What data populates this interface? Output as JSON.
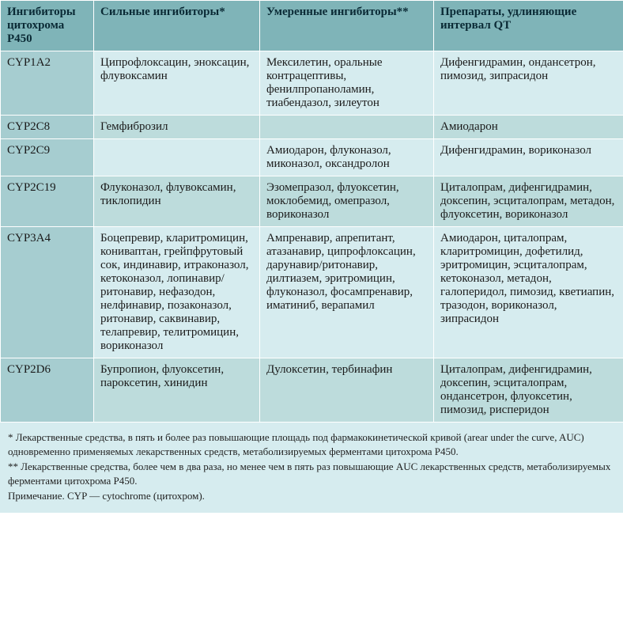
{
  "table": {
    "header_bg": "#7fb4b8",
    "header_text_color": "#0a2a35",
    "header_fontsize": 15,
    "body_fontsize": 15,
    "row_color_a": "#d6ecef",
    "row_color_b": "#bddcdc",
    "col0_bg": "#a6cdd0",
    "border_color": "#ffffff",
    "columns": [
      "Ингибиторы цитохрома Р450",
      "Сильные ингибиторы*",
      "Умеренные ингибиторы**",
      "Препараты, удлиняющие интервал QT"
    ],
    "rows": [
      {
        "cyp": "CYP1A2",
        "strong": "Ципрофлоксацин, эноксацин, флувоксамин",
        "moderate": "Мексилетин, оральные контрацептивы, фенилпропаноламин, тиабендазол, зилеутон",
        "qt": "Дифенгидрамин, ондансетрон, пимозид, зипрасидон"
      },
      {
        "cyp": "CYP2C8",
        "strong": "Гемфиброзил",
        "moderate": "",
        "qt": "Амиодарон"
      },
      {
        "cyp": "CYP2C9",
        "strong": "",
        "moderate": "Амиодарон, флуконазол, миконазол, оксандролон",
        "qt": "Дифенгидрамин, вориконазол"
      },
      {
        "cyp": "CYP2C19",
        "strong": "Флуконазол, флувоксамин, тиклопидин",
        "moderate": "Эзомепразол, флуоксетин, моклобемид, омепразол, вориконазол",
        "qt": "Циталопрам, дифенгидрамин, доксепин, эсциталопрам, метадон, флуоксетин, вориконазол"
      },
      {
        "cyp": "CYP3A4",
        "strong": "Боцепревир, кларитромицин, кониваптан, грейпфрутовый сок, индинавир, итраконазол, кетоконазол, лопинавир/ритонавир, нефазодон, нелфинавир, позаконазол, ритонавир, саквинавир, телапревир, телитромицин, вориконазол",
        "moderate": "Ампренавир, апрепитант, атазанавир, ципрофлоксацин, дарунавир/ритонавир, дилтиазем, эритромицин, флуконазол, фосампренавир, иматиниб, верапамил",
        "qt": "Амиодарон, циталопрам, кларитромицин, дофетилид, эритромицин, эсциталопрам, кетоконазол, метадон, галоперидол, пимозид, кветиапин, тразодон, вориконазол, зипрасидон"
      },
      {
        "cyp": "CYP2D6",
        "strong": "Бупропион, флуоксетин, пароксетин, хинидин",
        "moderate": "Дулоксетин, тербинафин",
        "qt": "Циталопрам, дифенгидрамин, доксепин, эсциталопрам, ондансетрон, флуоксетин, пимозид, рисперидон"
      }
    ]
  },
  "footnotes": {
    "bg": "#d6ecef",
    "text_color": "#222222",
    "fontsize": 13,
    "lines": [
      "*   Лекарственные средства, в пять и более раз повышающие площадь под фармакокинетической кривой (arear under the curve, AUC) одновременно применяемых лекарственных средств, метаболизируемых ферментами цитохрома Р450.",
      "**   Лекарственные средства, более чем в два раза, но менее чем в пять раз повышающие AUC лекарственных средств, метаболизируемых ферментами цитохрома Р450.",
      "Примечание. CYP — cytochrome (цитохром)."
    ]
  }
}
